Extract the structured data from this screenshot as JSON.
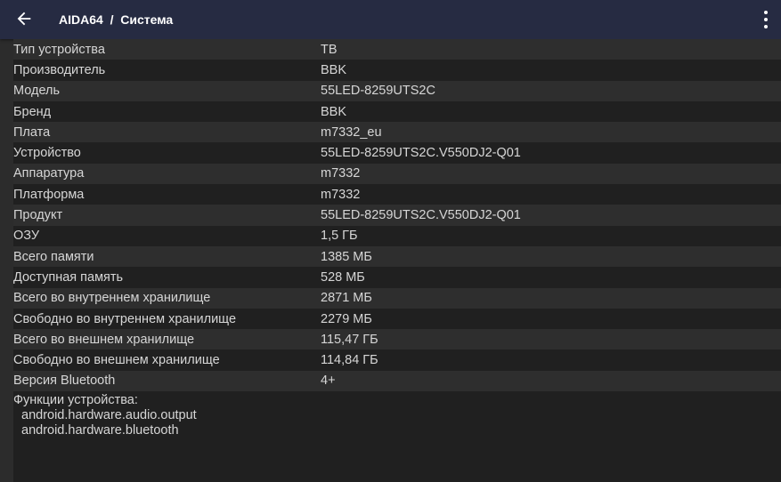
{
  "header": {
    "title": "AIDA64  /  Система"
  },
  "rows": [
    {
      "k": "Тип устройства",
      "v": "ТВ"
    },
    {
      "k": "Производитель",
      "v": "BBK"
    },
    {
      "k": "Модель",
      "v": "55LED-8259UTS2C"
    },
    {
      "k": "Бренд",
      "v": "BBK"
    },
    {
      "k": "Плата",
      "v": "m7332_eu"
    },
    {
      "k": "Устройство",
      "v": "55LED-8259UTS2C.V550DJ2-Q01"
    },
    {
      "k": "Аппаратура",
      "v": "m7332"
    },
    {
      "k": "Платформа",
      "v": "m7332"
    },
    {
      "k": "Продукт",
      "v": "55LED-8259UTS2C.V550DJ2-Q01"
    },
    {
      "k": "ОЗУ",
      "v": "1,5 ГБ"
    },
    {
      "k": "Всего памяти",
      "v": "1385 МБ"
    },
    {
      "k": "Доступная память",
      "v": "528 МБ"
    },
    {
      "k": "Всего во внутреннем хранилище",
      "v": "2871 МБ"
    },
    {
      "k": "Свободно во внутреннем хранилище",
      "v": "2279 МБ"
    },
    {
      "k": "Всего во внешнем хранилище",
      "v": "115,47 ГБ"
    },
    {
      "k": "Свободно во внешнем хранилище",
      "v": "114,84 ГБ"
    },
    {
      "k": "Версия Bluetooth",
      "v": "4+"
    }
  ],
  "features": {
    "label": "Функции устройства:",
    "items": [
      "android.hardware.audio.output",
      "android.hardware.bluetooth"
    ]
  }
}
